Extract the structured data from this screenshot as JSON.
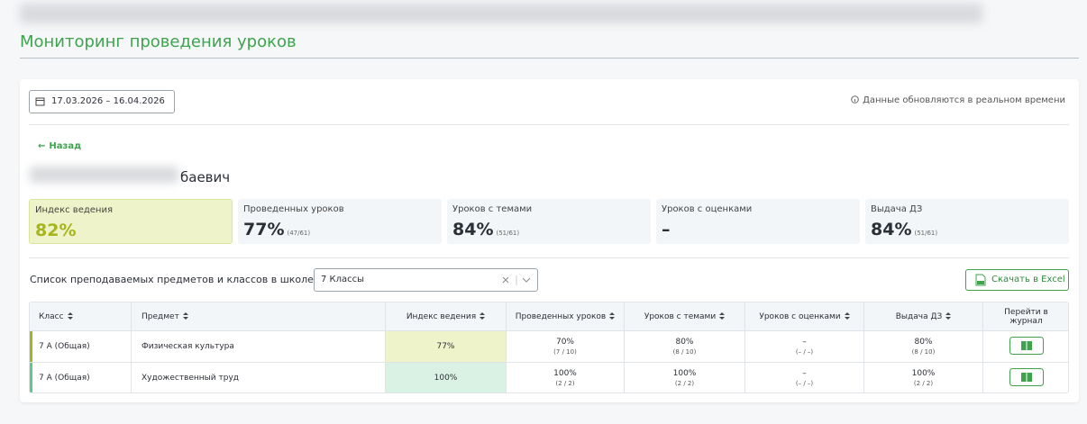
{
  "header": {
    "title": "Мониторинг проведения уроков"
  },
  "filters": {
    "date_range": "17.03.2026 – 16.04.2026",
    "realtime_note": "Данные обновляются в реальном времени"
  },
  "back": "Назад",
  "teacher_name": "баевич",
  "stats": [
    {
      "label": "Индекс ведения",
      "value": "82%"
    },
    {
      "label": "Проведенных уроков",
      "value": "77%",
      "detail": "(47/61)"
    },
    {
      "label": "Уроков с темами",
      "value": "84%",
      "detail": "(51/61)"
    },
    {
      "label": "Уроков с оценками",
      "value": "–"
    },
    {
      "label": "Выдача ДЗ",
      "value": "84%",
      "detail": "(51/61)"
    }
  ],
  "subjects": {
    "label": "Список преподаваемых предметов и классов в школе",
    "select": "7 Классы",
    "export": "Скачать в Excel"
  },
  "table": {
    "columns": [
      "Класс",
      "Предмет",
      "Индекс ведения",
      "Проведенных уроков",
      "Уроков с темами",
      "Уроков с оценками",
      "Выдача ДЗ",
      "Перейти в журнал"
    ],
    "rows": [
      {
        "class": "7 А (Общая)",
        "subject": "Физическая культура",
        "index": "77%",
        "held": {
          "value": "70%",
          "detail": "(7 / 10)"
        },
        "topics": {
          "value": "80%",
          "detail": "(8 / 10)"
        },
        "grades": {
          "value": "–",
          "detail": "(– / –)"
        },
        "homework": {
          "value": "80%",
          "detail": "(8 / 10)"
        }
      },
      {
        "class": "7 А (Общая)",
        "subject": "Художественный труд",
        "index": "100%",
        "held": {
          "value": "100%",
          "detail": "(2 / 2)"
        },
        "topics": {
          "value": "100%",
          "detail": "(2 / 2)"
        },
        "grades": {
          "value": "–",
          "detail": "(– / –)"
        },
        "homework": {
          "value": "100%",
          "detail": "(2 / 2)"
        }
      }
    ]
  }
}
